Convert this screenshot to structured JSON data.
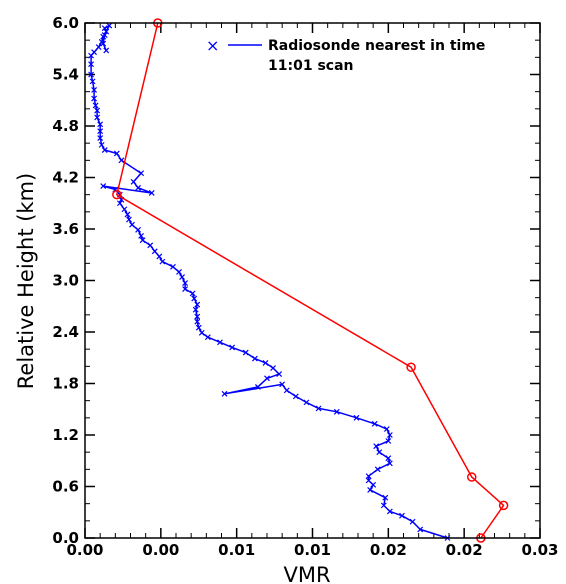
{
  "chart_data": {
    "type": "line",
    "xlabel": "VMR",
    "ylabel": "Relative Height (km)",
    "xlim": [
      0.0,
      0.03
    ],
    "ylim": [
      0.0,
      6.0
    ],
    "x_tick_values": [
      0.0,
      0.005,
      0.01,
      0.015,
      0.02,
      0.025,
      0.03
    ],
    "x_tick_labels": [
      "0.00",
      "0.00",
      "0.01",
      "0.01",
      "0.02",
      "0.02",
      "0.03"
    ],
    "y_tick_values": [
      0.0,
      0.6,
      1.2,
      1.8,
      2.4,
      3.0,
      3.6,
      4.2,
      4.8,
      5.4,
      6.0
    ],
    "y_tick_labels": [
      "0.0",
      "0.6",
      "1.2",
      "1.8",
      "2.4",
      "3.0",
      "3.6",
      "4.2",
      "4.8",
      "5.4",
      "6.0"
    ],
    "grid": false,
    "legend_position": "top-right",
    "series": [
      {
        "name": "Radiosonde nearest in time",
        "color": "#0000ff",
        "marker": "x",
        "x": [
          0.0239,
          0.0221,
          0.0216,
          0.0209,
          0.0201,
          0.0197,
          0.0198,
          0.0188,
          0.019,
          0.0187,
          0.0187,
          0.0193,
          0.0201,
          0.02,
          0.0194,
          0.0192,
          0.02,
          0.0201,
          0.0199,
          0.0191,
          0.0179,
          0.0166,
          0.0154,
          0.0146,
          0.0139,
          0.0133,
          0.013,
          0.0092,
          0.0114,
          0.012,
          0.0128,
          0.0124,
          0.0119,
          0.0112,
          0.0106,
          0.0097,
          0.0089,
          0.0081,
          0.0077,
          0.0075,
          0.0074,
          0.0074,
          0.0073,
          0.0074,
          0.0072,
          0.0071,
          0.0066,
          0.0066,
          0.0064,
          0.0062,
          0.0058,
          0.0051,
          0.0049,
          0.0046,
          0.0043,
          0.0038,
          0.0037,
          0.0035,
          0.0031,
          0.0029,
          0.0028,
          0.0026,
          0.0023,
          0.0024,
          0.0023,
          0.002,
          0.0012,
          0.0044,
          0.0035,
          0.0032,
          0.0037,
          0.0024,
          0.0021,
          0.0013,
          0.0011,
          0.001,
          0.001,
          0.001,
          0.0008,
          0.0008,
          0.0007,
          0.0006,
          0.0006,
          0.0005,
          0.0004,
          0.0004,
          0.0004,
          0.0006,
          0.0009,
          0.0011,
          0.0012,
          0.0014,
          0.0013,
          0.0016,
          0.0013,
          0.0012,
          0.0014
        ],
        "y": [
          0.0,
          0.1,
          0.19,
          0.26,
          0.31,
          0.38,
          0.47,
          0.56,
          0.62,
          0.67,
          0.72,
          0.8,
          0.87,
          0.93,
          1.0,
          1.07,
          1.13,
          1.2,
          1.27,
          1.33,
          1.4,
          1.47,
          1.51,
          1.58,
          1.65,
          1.72,
          1.79,
          1.68,
          1.76,
          1.86,
          1.91,
          1.98,
          2.04,
          2.09,
          2.16,
          2.22,
          2.28,
          2.34,
          2.39,
          2.45,
          2.52,
          2.58,
          2.66,
          2.72,
          2.79,
          2.85,
          2.9,
          2.97,
          3.04,
          3.1,
          3.16,
          3.22,
          3.28,
          3.34,
          3.41,
          3.47,
          3.52,
          3.59,
          3.65,
          3.71,
          3.77,
          3.83,
          3.9,
          3.94,
          4.0,
          4.06,
          4.1,
          4.02,
          4.08,
          4.15,
          4.25,
          4.4,
          4.48,
          4.52,
          4.58,
          4.66,
          4.74,
          4.82,
          4.9,
          4.98,
          5.04,
          5.12,
          5.22,
          5.32,
          5.4,
          5.52,
          5.62,
          5.66,
          5.72,
          5.78,
          5.84,
          5.9,
          5.94,
          5.97,
          5.86,
          5.76,
          5.68
        ]
      },
      {
        "name": "11:01 scan",
        "color": "#ff0000",
        "marker": "circle",
        "x": [
          0.0261,
          0.0276,
          0.0255,
          0.0215,
          0.0021,
          0.0048
        ],
        "y": [
          0.0,
          0.38,
          0.71,
          1.99,
          4.0,
          6.0
        ]
      }
    ]
  }
}
